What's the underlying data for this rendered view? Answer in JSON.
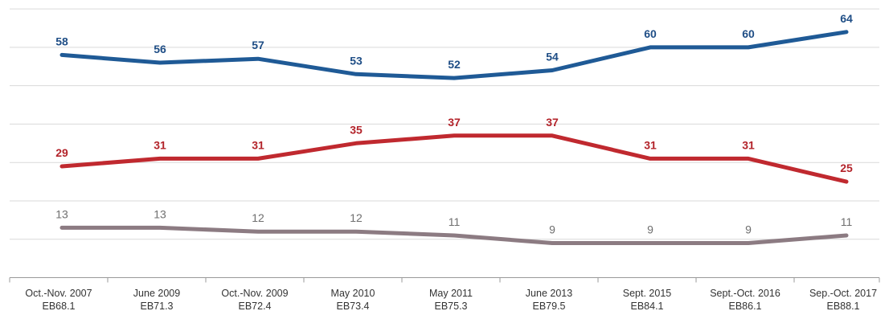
{
  "chart_data": {
    "type": "line",
    "title": "",
    "xlabel": "",
    "ylabel": "",
    "ylim": [
      0,
      70
    ],
    "grid": true,
    "categories": [
      [
        "Oct.-Nov. 2007",
        "EB68.1"
      ],
      [
        "June 2009",
        "EB71.3"
      ],
      [
        "Oct.-Nov. 2009",
        "EB72.4"
      ],
      [
        "May 2010",
        "EB73.4"
      ],
      [
        "May 2011",
        "EB75.3"
      ],
      [
        "June 2013",
        "EB79.5"
      ],
      [
        "Sept. 2015",
        "EB84.1"
      ],
      [
        "Sept.-Oct. 2016",
        "EB86.1"
      ],
      [
        "Sep.-Oct. 2017",
        "EB88.1"
      ]
    ],
    "series": [
      {
        "color": "#1f5a96",
        "label_color": "#1f4e86",
        "values": [
          58,
          56,
          57,
          53,
          52,
          54,
          60,
          60,
          64
        ]
      },
      {
        "color": "#c0292f",
        "label_color": "#b3232a",
        "values": [
          29,
          31,
          31,
          35,
          37,
          37,
          31,
          31,
          25
        ]
      },
      {
        "color": "#8c7b82",
        "label_color": "#6f6f6f",
        "values": [
          13,
          13,
          12,
          12,
          11,
          9,
          9,
          9,
          11
        ]
      }
    ]
  }
}
